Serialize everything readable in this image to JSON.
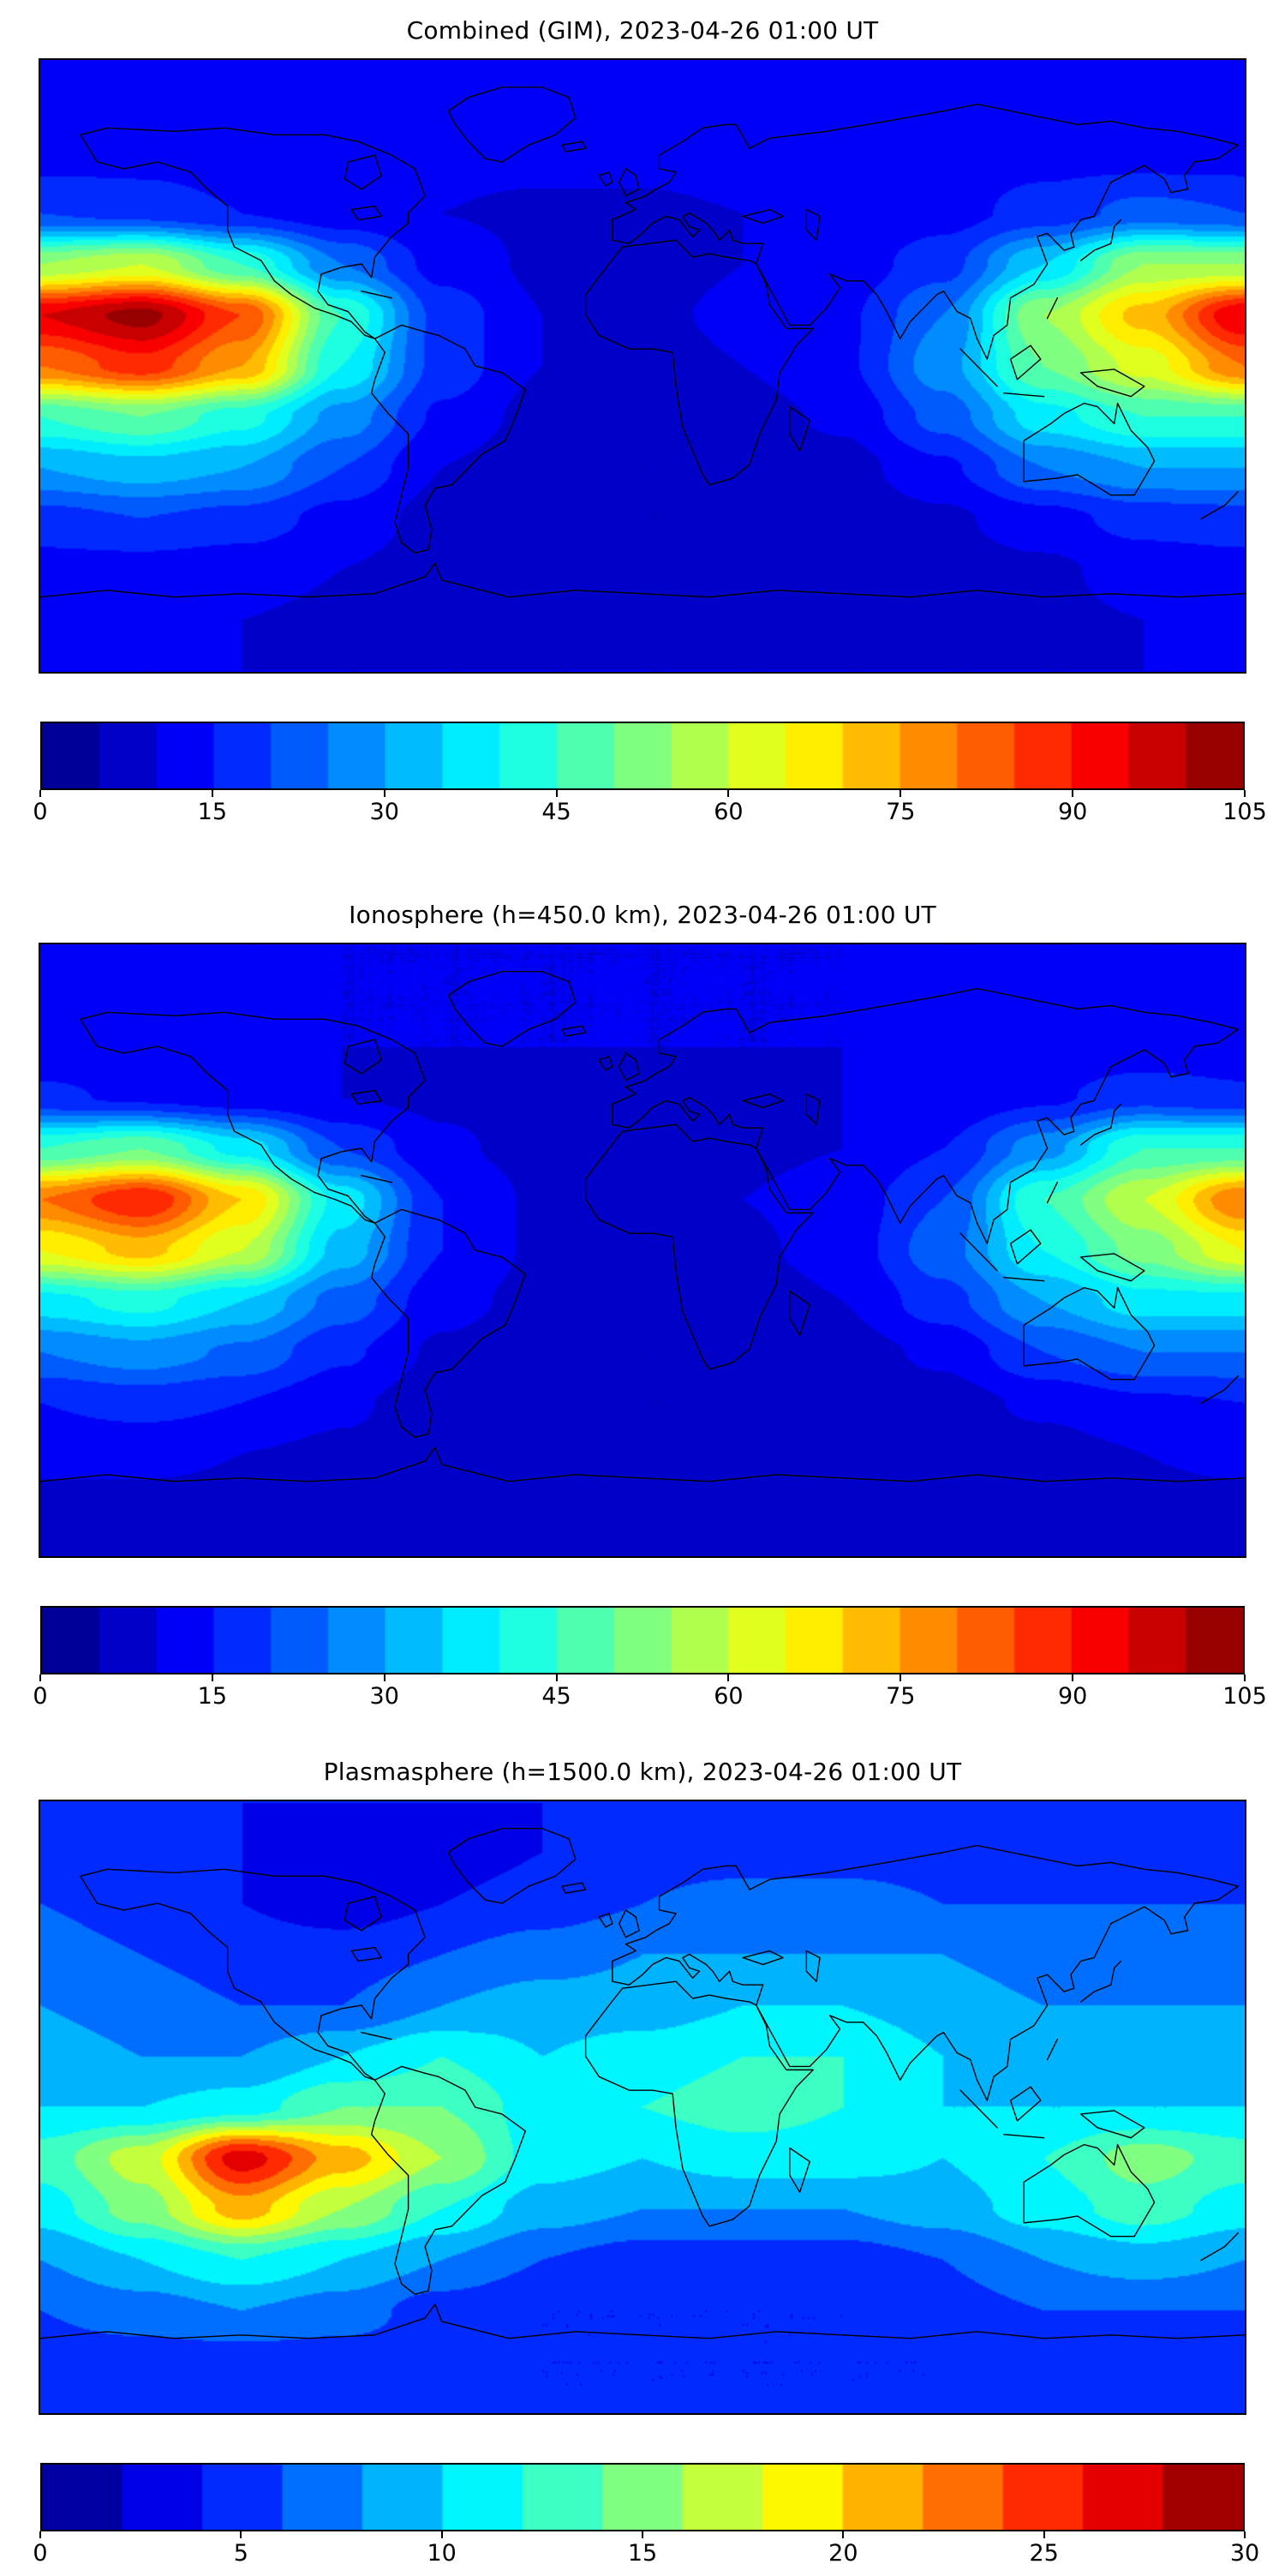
{
  "figure": {
    "background": "#ffffff",
    "colormap": "jet",
    "panel_count": 3
  },
  "chart_data": [
    {
      "type": "heatmap",
      "title": "Combined (GIM), 2023-04-26 01:00 UT",
      "projection": "equirectangular",
      "colormap": "jet",
      "vmin": 0,
      "vmax": 105,
      "levels": 21,
      "ticks": [
        0,
        15,
        30,
        45,
        60,
        75,
        90,
        105
      ],
      "lon": [
        -180,
        -150,
        -120,
        -90,
        -60,
        -30,
        0,
        30,
        60,
        90,
        120,
        150,
        180
      ],
      "lat": [
        90,
        75,
        60,
        45,
        30,
        15,
        0,
        -15,
        -30,
        -45,
        -60,
        -75,
        -90
      ],
      "values": [
        [
          12,
          12,
          12,
          12,
          12,
          12,
          12,
          12,
          12,
          12,
          12,
          12,
          12
        ],
        [
          13,
          13,
          13,
          12,
          12,
          12,
          12,
          12,
          12,
          13,
          13,
          13,
          13
        ],
        [
          14,
          14,
          13,
          12,
          11,
          11,
          11,
          12,
          12,
          13,
          14,
          14,
          14
        ],
        [
          20,
          18,
          15,
          12,
          10,
          9,
          9,
          10,
          11,
          13,
          17,
          22,
          20
        ],
        [
          55,
          60,
          45,
          25,
          13,
          9,
          8,
          10,
          12,
          18,
          35,
          55,
          55
        ],
        [
          95,
          102,
          85,
          45,
          18,
          10,
          9,
          11,
          14,
          25,
          55,
          72,
          95
        ],
        [
          80,
          88,
          75,
          40,
          18,
          10,
          8,
          10,
          14,
          28,
          50,
          62,
          80
        ],
        [
          45,
          50,
          42,
          28,
          14,
          8,
          6,
          8,
          11,
          22,
          38,
          45,
          45
        ],
        [
          30,
          33,
          30,
          20,
          10,
          6,
          5,
          6,
          8,
          14,
          25,
          30,
          30
        ],
        [
          18,
          20,
          18,
          13,
          8,
          6,
          5,
          5,
          7,
          9,
          13,
          17,
          18
        ],
        [
          13,
          13,
          12,
          10,
          8,
          7,
          6,
          6,
          7,
          8,
          9,
          12,
          13
        ],
        [
          11,
          11,
          10,
          9,
          9,
          8,
          8,
          8,
          8,
          9,
          9,
          10,
          11
        ],
        [
          10,
          10,
          10,
          10,
          10,
          10,
          10,
          10,
          10,
          10,
          10,
          10,
          10
        ]
      ]
    },
    {
      "type": "heatmap",
      "title": "Ionosphere  (h=450.0 km), 2023-04-26 01:00 UT",
      "projection": "equirectangular",
      "colormap": "jet",
      "vmin": 0,
      "vmax": 105,
      "levels": 21,
      "ticks": [
        0,
        15,
        30,
        45,
        60,
        75,
        90,
        105
      ],
      "lon": [
        -180,
        -150,
        -120,
        -90,
        -60,
        -30,
        0,
        30,
        60,
        90,
        120,
        150,
        180
      ],
      "lat": [
        90,
        75,
        60,
        45,
        30,
        15,
        0,
        -15,
        -30,
        -45,
        -60,
        -75,
        -90
      ],
      "values": [
        [
          10,
          10,
          10,
          10,
          10,
          10,
          10,
          10,
          10,
          10,
          10,
          10,
          10
        ],
        [
          11,
          11,
          11,
          10,
          10,
          10,
          10,
          10,
          10,
          11,
          11,
          11,
          11
        ],
        [
          12,
          12,
          11,
          10,
          10,
          10,
          10,
          10,
          10,
          11,
          12,
          12,
          12
        ],
        [
          16,
          14,
          12,
          10,
          9,
          8,
          8,
          9,
          10,
          11,
          14,
          18,
          16
        ],
        [
          45,
          50,
          38,
          20,
          11,
          8,
          7,
          9,
          10,
          15,
          28,
          45,
          45
        ],
        [
          80,
          90,
          70,
          38,
          15,
          9,
          8,
          10,
          12,
          20,
          45,
          60,
          80
        ],
        [
          65,
          72,
          60,
          33,
          15,
          9,
          8,
          9,
          12,
          23,
          40,
          52,
          65
        ],
        [
          38,
          42,
          35,
          23,
          12,
          8,
          6,
          7,
          10,
          18,
          30,
          38,
          38
        ],
        [
          25,
          28,
          24,
          16,
          9,
          6,
          5,
          6,
          8,
          11,
          20,
          25,
          25
        ],
        [
          15,
          17,
          15,
          11,
          7,
          6,
          5,
          5,
          6,
          8,
          11,
          14,
          15
        ],
        [
          11,
          11,
          10,
          9,
          7,
          6,
          6,
          6,
          6,
          7,
          8,
          10,
          11
        ],
        [
          9,
          9,
          9,
          8,
          8,
          7,
          7,
          7,
          7,
          8,
          8,
          9,
          9
        ],
        [
          8,
          8,
          8,
          8,
          8,
          8,
          8,
          8,
          8,
          8,
          8,
          8,
          8
        ]
      ]
    },
    {
      "type": "heatmap",
      "title": "Plasmasphere (h=1500.0 km), 2023-04-26 01:00 UT",
      "projection": "equirectangular",
      "colormap": "jet",
      "vmin": 0,
      "vmax": 30,
      "levels": 15,
      "ticks": [
        0,
        5,
        10,
        15,
        20,
        25,
        30
      ],
      "lon": [
        -180,
        -150,
        -120,
        -90,
        -60,
        -30,
        0,
        30,
        60,
        90,
        120,
        150,
        180
      ],
      "lat": [
        90,
        75,
        60,
        45,
        30,
        15,
        0,
        -15,
        -30,
        -45,
        -60,
        -75,
        -90
      ],
      "values": [
        [
          4,
          4,
          4,
          4,
          4,
          4,
          4,
          4,
          4,
          4,
          4,
          4,
          4
        ],
        [
          5,
          5,
          4,
          3,
          3,
          4,
          5,
          5,
          5,
          5,
          5,
          5,
          5
        ],
        [
          6,
          5,
          4,
          3,
          4,
          5,
          6,
          7,
          7,
          6,
          6,
          6,
          6
        ],
        [
          7,
          6,
          5,
          5,
          6,
          7,
          8,
          8,
          8,
          8,
          7,
          7,
          7
        ],
        [
          8,
          7,
          6,
          6,
          8,
          9,
          9,
          10,
          10,
          9,
          8,
          8,
          8
        ],
        [
          9,
          8,
          8,
          10,
          12,
          10,
          11,
          12,
          12,
          10,
          9,
          9,
          9
        ],
        [
          10,
          10,
          11,
          14,
          14,
          11,
          12,
          13,
          12,
          10,
          10,
          10,
          10
        ],
        [
          13,
          17,
          27,
          21,
          16,
          11,
          10,
          11,
          11,
          10,
          12,
          15,
          13
        ],
        [
          11,
          15,
          21,
          16,
          12,
          9,
          8,
          8,
          8,
          9,
          11,
          13,
          11
        ],
        [
          8,
          10,
          12,
          10,
          8,
          6,
          5,
          5,
          5,
          6,
          8,
          9,
          8
        ],
        [
          6,
          7,
          8,
          7,
          5,
          4,
          4,
          4,
          4,
          5,
          6,
          6,
          6
        ],
        [
          5,
          5,
          5,
          5,
          5,
          4,
          4,
          4,
          4,
          4,
          5,
          5,
          5
        ],
        [
          4,
          4,
          4,
          4,
          4,
          4,
          4,
          4,
          4,
          4,
          4,
          4,
          4
        ]
      ]
    }
  ]
}
